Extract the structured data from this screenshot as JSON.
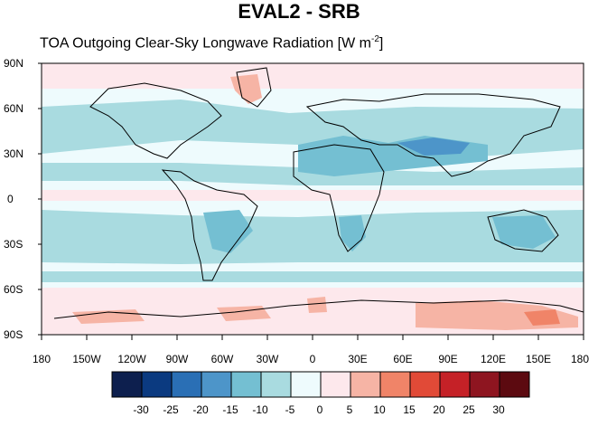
{
  "title": "EVAL2 - SRB",
  "subtitle": {
    "text": "TOA Outgoing Clear-Sky Longwave Radiation [W m",
    "superscript": "-2",
    "close": "]"
  },
  "lat_labels": [
    "90N",
    "60N",
    "30N",
    "0",
    "30S",
    "60S",
    "90S"
  ],
  "lon_labels": [
    "180",
    "150W",
    "120W",
    "90W",
    "60W",
    "30W",
    "0",
    "30E",
    "60E",
    "90E",
    "120E",
    "150E",
    "180"
  ],
  "colorbar": {
    "labels": [
      "-30",
      "-25",
      "-20",
      "-15",
      "-10",
      "-5",
      "0",
      "5",
      "10",
      "15",
      "20",
      "25",
      "30"
    ],
    "colors": [
      "#0d1f4e",
      "#0b3a80",
      "#2a6fb5",
      "#4d95c9",
      "#74bfd2",
      "#a9dbe0",
      "#eefbfd",
      "#fde8ec",
      "#f6b4a5",
      "#f08468",
      "#e14a37",
      "#c52127",
      "#8e1520",
      "#5c0a10"
    ]
  },
  "field_colors": {
    "background": "#eefbfd",
    "band_neg": "#a9dbe0",
    "band_neg_strong": "#74bfd2",
    "band_neg_stronger": "#4d95c9",
    "band_pos": "#fde8ec",
    "band_pos_strong": "#f6b4a5",
    "band_pos_stronger": "#f08468"
  }
}
